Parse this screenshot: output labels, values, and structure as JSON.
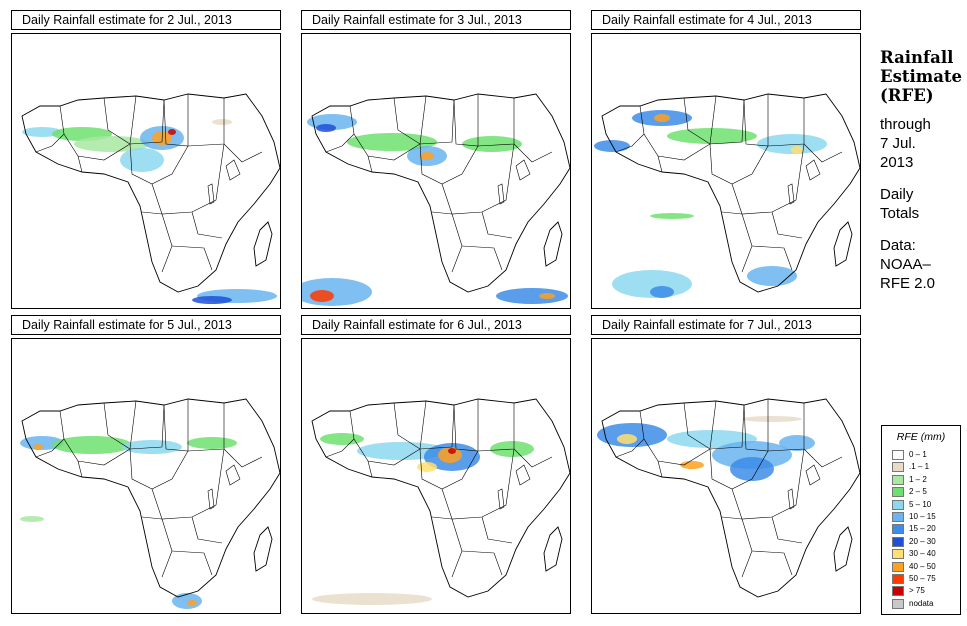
{
  "panels": [
    {
      "title": "Daily Rainfall estimate for  2 Jul., 2013"
    },
    {
      "title": "Daily Rainfall estimate for  3 Jul., 2013"
    },
    {
      "title": "Daily Rainfall estimate for  4 Jul., 2013"
    },
    {
      "title": "Daily Rainfall estimate for  5 Jul., 2013"
    },
    {
      "title": "Daily Rainfall estimate for  6 Jul., 2013"
    },
    {
      "title": "Daily Rainfall estimate for  7 Jul., 2013"
    }
  ],
  "sidebar": {
    "heading": [
      "Rainfall",
      "Estimate",
      "(RFE)"
    ],
    "through": [
      "through",
      "7 Jul.",
      "2013"
    ],
    "totals": [
      "Daily",
      "Totals"
    ],
    "data": [
      "Data:",
      "NOAA–",
      "RFE 2.0"
    ]
  },
  "legend": {
    "title": "RFE (mm)",
    "classes": [
      {
        "label": "0 – 1",
        "color": "#ffffff"
      },
      {
        "label": ".1 – 1",
        "color": "#e8dcc8"
      },
      {
        "label": "1 – 2",
        "color": "#a8e8a0"
      },
      {
        "label": "2 – 5",
        "color": "#6ee06e"
      },
      {
        "label": "5 – 10",
        "color": "#8cd8f0"
      },
      {
        "label": "10 – 15",
        "color": "#6ab4f0"
      },
      {
        "label": "15 – 20",
        "color": "#3c8ce8"
      },
      {
        "label": "20 – 30",
        "color": "#1e50d8"
      },
      {
        "label": "30 – 40",
        "color": "#ffe070"
      },
      {
        "label": "40 – 50",
        "color": "#ffa020"
      },
      {
        "label": "50 – 75",
        "color": "#ff3a00"
      },
      {
        "label": "> 75",
        "color": "#c80000"
      },
      {
        "label": "nodata",
        "color": "#c8c8c8"
      }
    ]
  }
}
